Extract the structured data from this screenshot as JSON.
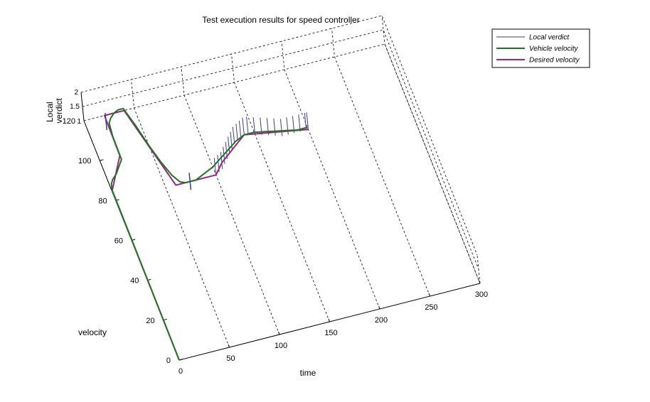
{
  "chart_data": {
    "type": "line",
    "view": "3d",
    "title": "Test execution results for speed controller",
    "xlabel": "time",
    "ylabel": "velocity",
    "zlabel": "Local verdict",
    "xlim": [
      0,
      300
    ],
    "ylim": [
      0,
      120
    ],
    "zlim": [
      1,
      2
    ],
    "x_ticks": [
      "0",
      "50",
      "100",
      "150",
      "200",
      "250",
      "300"
    ],
    "y_ticks": [
      "0",
      "20",
      "40",
      "60",
      "80",
      "100",
      "120"
    ],
    "z_ticks": [
      "1",
      "1.5",
      "2"
    ],
    "grid": true,
    "legend_position": "top-right",
    "colors": {
      "local_verdict": "#3a3aa8",
      "vehicle_velocity": "#1a7a1a",
      "desired_velocity": "#a0208c"
    },
    "series": [
      {
        "name": "Local verdict",
        "type": "stem",
        "x": [
          0,
          100,
          104,
          108,
          112,
          116,
          120,
          124,
          128,
          132,
          136,
          140,
          144,
          150,
          156,
          162,
          168,
          174,
          180,
          186,
          192,
          198,
          200
        ],
        "y": [
          0,
          80,
          81,
          82,
          84,
          86,
          88,
          90,
          92,
          93,
          94,
          95,
          95,
          94,
          93,
          92,
          91,
          90,
          90,
          90,
          90,
          90,
          90
        ],
        "z": [
          1,
          1.6,
          1.6,
          1.6,
          1.6,
          1.6,
          1.6,
          1.6,
          1.6,
          1.6,
          1.6,
          1.6,
          1.6,
          1.6,
          1.6,
          1.6,
          1.6,
          1.6,
          1.6,
          1.6,
          1.6,
          1.6,
          1.6
        ]
      },
      {
        "name": "Vehicle velocity",
        "x": [
          0,
          0.5,
          2,
          5,
          10,
          15,
          20,
          20.5,
          22,
          25,
          30,
          35,
          40,
          45,
          50,
          55,
          60,
          65,
          70,
          75,
          80,
          85,
          90,
          95,
          100,
          110,
          120,
          130,
          140,
          150,
          160,
          170,
          180,
          190,
          200
        ],
        "y": [
          0,
          85,
          88,
          90,
          92,
          95,
          98,
          110,
          116,
          118,
          120,
          121,
          121,
          112,
          101,
          92,
          85,
          81,
          80,
          80,
          80,
          81,
          82,
          83,
          84,
          87,
          90,
          93,
          95,
          95,
          94,
          93,
          92,
          91,
          91
        ],
        "z": [
          1,
          1,
          1,
          1,
          1,
          1,
          1,
          1,
          1,
          1,
          1,
          1,
          1,
          1,
          1,
          1,
          1,
          1,
          1,
          1,
          1,
          1,
          1,
          1,
          1,
          1,
          1,
          1,
          1,
          1,
          1,
          1,
          1,
          1,
          1
        ]
      },
      {
        "name": "Desired velocity",
        "x": [
          0,
          0.5,
          20,
          20.5,
          40,
          60,
          100,
          110,
          140,
          200
        ],
        "y": [
          0,
          85,
          100,
          120,
          120,
          80,
          80,
          85,
          95,
          90
        ],
        "z": [
          1,
          1,
          1,
          1,
          1,
          1,
          1,
          1,
          1,
          1
        ]
      }
    ]
  }
}
